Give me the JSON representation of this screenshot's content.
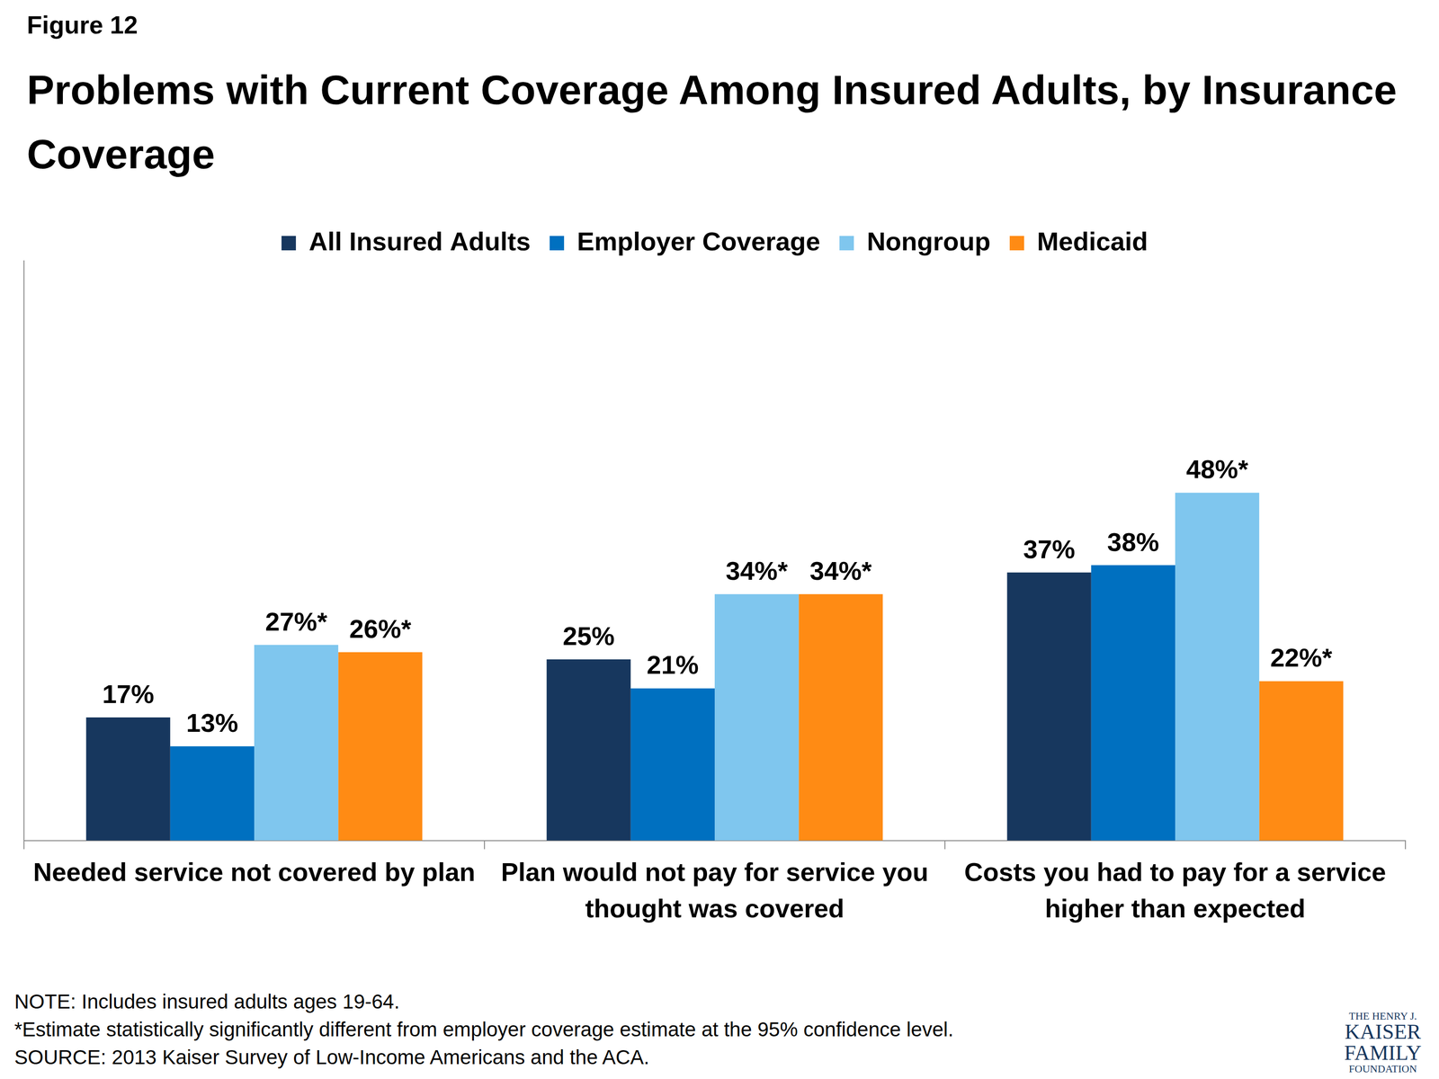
{
  "figure_label": "Figure 12",
  "chart_data": {
    "type": "bar",
    "title": "Problems with Current Coverage Among Insured Adults, by Insurance Coverage",
    "categories": [
      [
        "Needed service not covered by plan"
      ],
      [
        "Plan would not pay for service you",
        "thought was covered"
      ],
      [
        "Costs you had to pay for a service",
        "higher than expected"
      ]
    ],
    "series": [
      {
        "name": "All Insured Adults",
        "color": "#17375e",
        "values": [
          17,
          25,
          37
        ],
        "value_labels": [
          "17%",
          "25%",
          "37%"
        ]
      },
      {
        "name": "Employer Coverage",
        "color": "#0070c0",
        "values": [
          13,
          21,
          38
        ],
        "value_labels": [
          "13%",
          "21%",
          "38%"
        ]
      },
      {
        "name": "Nongroup",
        "color": "#7fc6ee",
        "values": [
          27,
          34,
          48
        ],
        "value_labels": [
          "27%*",
          "34%*",
          "48%*"
        ]
      },
      {
        "name": "Medicaid",
        "color": "#ff8b14",
        "values": [
          26,
          34,
          22
        ],
        "value_labels": [
          "26%*",
          "34%*",
          "22%*"
        ]
      }
    ],
    "ylim": [
      0,
      80
    ],
    "grid": false,
    "legend": "top",
    "data_labels": true,
    "tick_labels": "x"
  },
  "notes": [
    "NOTE: Includes insured adults ages 19-64.",
    "*Estimate statistically significantly different from employer coverage estimate at the 95% confidence level.",
    "SOURCE: 2013 Kaiser Survey of Low-Income Americans and the ACA."
  ],
  "logo": [
    "THE HENRY J.",
    "KAISER",
    "FAMILY",
    "FOUNDATION"
  ]
}
